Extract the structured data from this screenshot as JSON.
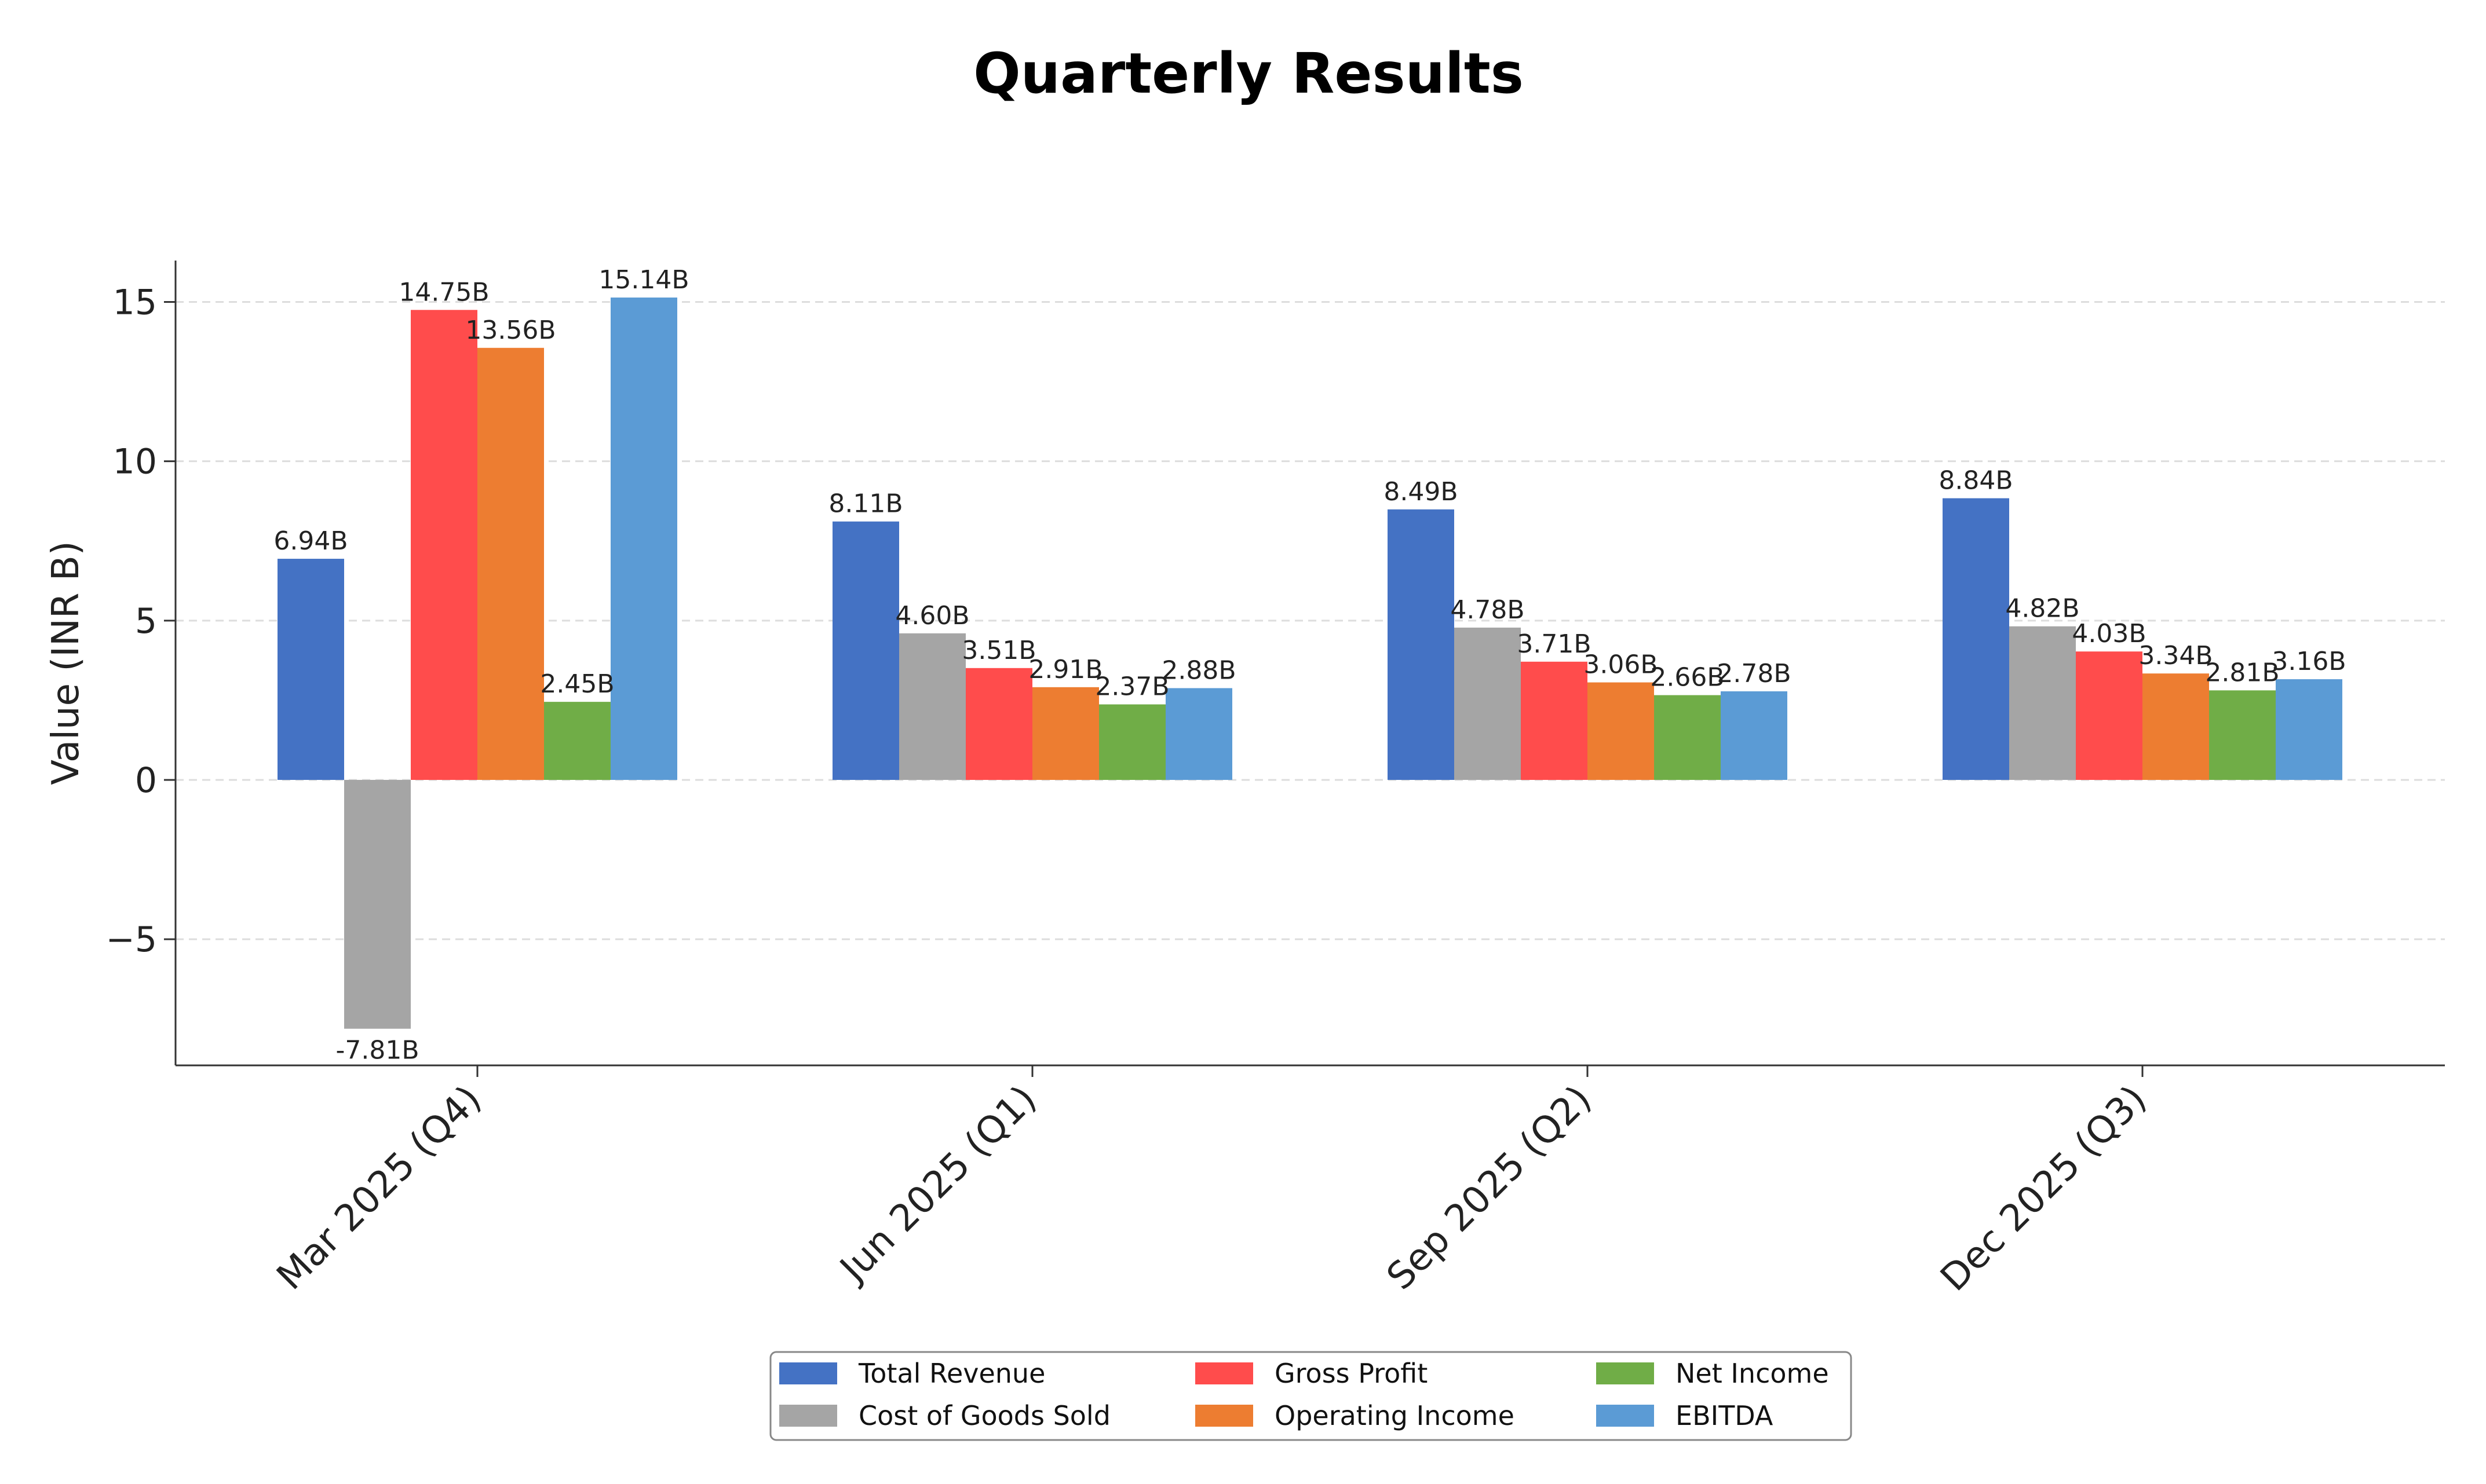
{
  "chart_data": {
    "type": "bar",
    "title": "Quarterly Results",
    "xlabel": "",
    "ylabel": "Value (INR B)",
    "categories": [
      "Mar 2025 (Q4)",
      "Jun 2025 (Q1)",
      "Sep 2025 (Q2)",
      "Dec 2025 (Q3)"
    ],
    "series": [
      {
        "name": "Total Revenue",
        "color": "#4472C4",
        "values": [
          6.94,
          8.11,
          8.49,
          8.84
        ],
        "labels": [
          "6.94B",
          "8.11B",
          "8.49B",
          "8.84B"
        ]
      },
      {
        "name": "Cost of Goods Sold",
        "color": "#A5A5A5",
        "values": [
          -7.81,
          4.6,
          4.78,
          4.82
        ],
        "labels": [
          "-7.81B",
          "4.60B",
          "4.78B",
          "4.82B"
        ]
      },
      {
        "name": "Gross Profit",
        "color": "#FF4C4C",
        "values": [
          14.75,
          3.51,
          3.71,
          4.03
        ],
        "labels": [
          "14.75B",
          "3.51B",
          "3.71B",
          "4.03B"
        ]
      },
      {
        "name": "Operating Income",
        "color": "#ED7D31",
        "values": [
          13.56,
          2.91,
          3.06,
          3.34
        ],
        "labels": [
          "13.56B",
          "2.91B",
          "3.06B",
          "3.34B"
        ]
      },
      {
        "name": "Net Income",
        "color": "#70AD47",
        "values": [
          2.45,
          2.37,
          2.66,
          2.81
        ],
        "labels": [
          "2.45B",
          "2.37B",
          "2.66B",
          "2.81B"
        ]
      },
      {
        "name": "EBITDA",
        "color": "#5B9BD5",
        "values": [
          15.14,
          2.88,
          2.78,
          3.16
        ],
        "labels": [
          "15.14B",
          "2.88B",
          "2.78B",
          "3.16B"
        ]
      }
    ],
    "yticks": [
      {
        "value": -5,
        "label": "−5"
      },
      {
        "value": 0,
        "label": "0"
      },
      {
        "value": 5,
        "label": "5"
      },
      {
        "value": 10,
        "label": "10"
      },
      {
        "value": 15,
        "label": "15"
      }
    ],
    "ylim": [
      -8.96,
      16.3
    ],
    "grid": "horizontal dashed",
    "legend_position": "bottom-center"
  }
}
